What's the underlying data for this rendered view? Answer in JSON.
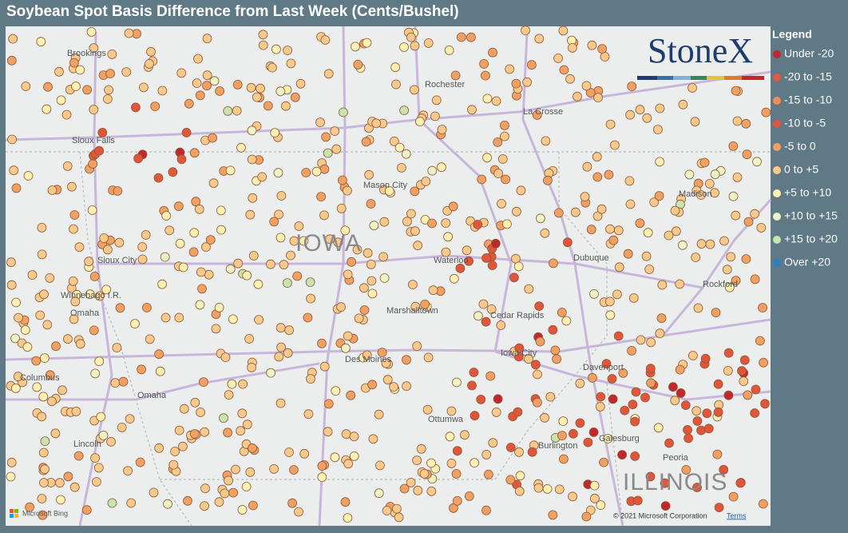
{
  "header": {
    "title": "Soybean Spot Basis Difference from Last Week (Cents/Bushel)"
  },
  "logo": {
    "text": "StoneX"
  },
  "legend": {
    "title": "Legend",
    "items": [
      {
        "label": "Under -20",
        "color": "#c1272d"
      },
      {
        "label": "-20 to -15",
        "color": "#de5a3a"
      },
      {
        "label": "-15 to -10",
        "color": "#f08c55"
      },
      {
        "label": "-10 to -5",
        "color": "#e2553a"
      },
      {
        "label": "-5 to 0",
        "color": "#f2a062"
      },
      {
        "label": "0 to +5",
        "color": "#f9c98c"
      },
      {
        "label": "+5 to +10",
        "color": "#fdf0b0"
      },
      {
        "label": "+10 to +15",
        "color": "#eef3c4"
      },
      {
        "label": "+15 to +20",
        "color": "#c9e3ad"
      },
      {
        "label": "Over +20",
        "color": "#2e7fbf"
      }
    ]
  },
  "map": {
    "labels": [
      "Brookings",
      "Rochester",
      "La Crosse",
      "Sioux Falls",
      "Mason City",
      "Madison",
      "IOWA",
      "Sioux City",
      "Waterloo",
      "Dubuque",
      "Rockford",
      "Winnebago I.R.",
      "Omaha",
      "Marshalltown",
      "Cedar Rapids",
      "Iowa City",
      "Des Moines",
      "Davenport",
      "Columbus",
      "Omaha",
      "Lincoln",
      "Ottumwa",
      "Burlington",
      "Galesburg",
      "Peoria",
      "ILLINOIS"
    ],
    "attribution": {
      "copyright": "© 2021 Microsoft Corporation",
      "terms": "Terms",
      "provider": "Microsoft Bing"
    }
  }
}
